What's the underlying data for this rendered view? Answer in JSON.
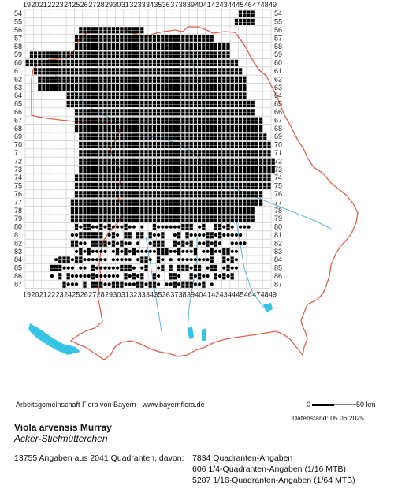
{
  "map": {
    "x_axis_labels": [
      "19",
      "20",
      "21",
      "22",
      "23",
      "24",
      "25",
      "26",
      "27",
      "28",
      "29",
      "30",
      "31",
      "32",
      "33",
      "34",
      "35",
      "36",
      "37",
      "38",
      "39",
      "40",
      "41",
      "42",
      "43",
      "44",
      "45",
      "46",
      "47",
      "48",
      "49"
    ],
    "y_axis_labels": [
      "54",
      "55",
      "56",
      "57",
      "58",
      "59",
      "60",
      "61",
      "62",
      "63",
      "64",
      "65",
      "66",
      "67",
      "68",
      "69",
      "70",
      "71",
      "72",
      "73",
      "74",
      "75",
      "76",
      "77",
      "78",
      "79",
      "80",
      "81",
      "82",
      "83",
      "84",
      "85",
      "86",
      "87"
    ],
    "colors": {
      "grid": "#c4c4c4",
      "border": "#e0604a",
      "water": "#35c3e6",
      "rivers": "#5ab6d8",
      "marker": "#000000"
    },
    "legend": {
      "square": "Quadranten-Angaben",
      "quarter": "1/4-Quadranten-Angaben (1/16 MTB)",
      "dot": "1/16-Quadranten-Angaben (1/64 MTB)"
    }
  },
  "footer": {
    "credit": "Arbeitsgemeinschaft Flora von Bayern - www.bayernflora.de",
    "scale_start": "0",
    "scale_end": "50 km",
    "date": "Datenstand: 05.06.2025",
    "species": "Viola arvensis Murray",
    "common_name": "Acker-Stiefmütterchen",
    "summary": "13755 Angaben aus 2041 Quadranten, davon:",
    "count_squares": "7834 Quadranten-Angaben",
    "count_quarter": "606 1/4-Quadranten-Angaben (1/16 MTB)",
    "count_dots": "5287 1/16-Quadranten-Angaben (1/64 MTB)"
  }
}
